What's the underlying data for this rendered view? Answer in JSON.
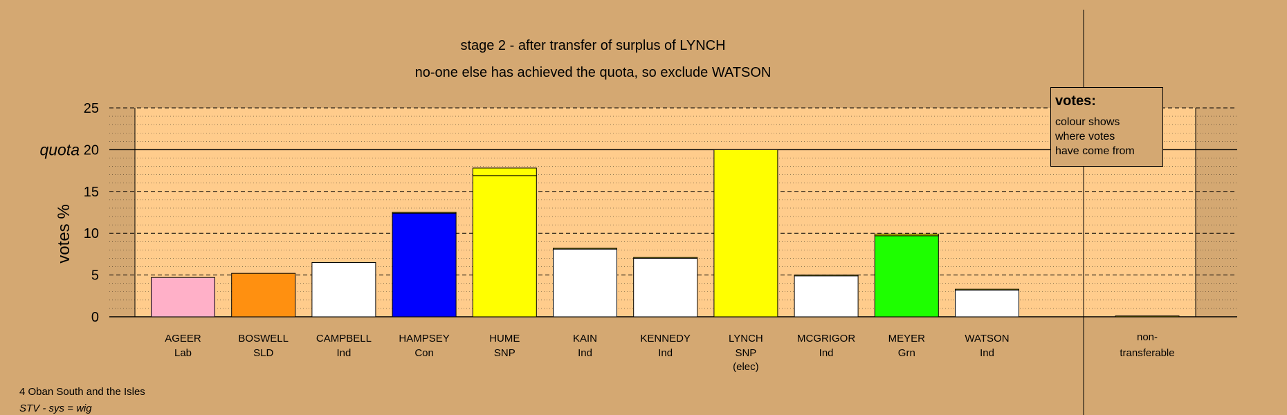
{
  "chart_data": {
    "type": "bar",
    "title": "stage 2 - after transfer of surplus of LYNCH",
    "subtitle": "no-one else has achieved the quota, so exclude WATSON",
    "ylabel": "votes %",
    "ylim": [
      0,
      25
    ],
    "yticks": [
      0,
      5,
      10,
      15,
      20,
      25
    ],
    "quota_label": "quota",
    "quota": 20,
    "categories": [
      {
        "name": "AGEER",
        "party": "Lab",
        "extra": ""
      },
      {
        "name": "BOSWELL",
        "party": "SLD",
        "extra": ""
      },
      {
        "name": "CAMPBELL",
        "party": "Ind",
        "extra": ""
      },
      {
        "name": "HAMPSEY",
        "party": "Con",
        "extra": ""
      },
      {
        "name": "HUME",
        "party": "SNP",
        "extra": ""
      },
      {
        "name": "KAIN",
        "party": "Ind",
        "extra": ""
      },
      {
        "name": "KENNEDY",
        "party": "Ind",
        "extra": ""
      },
      {
        "name": "LYNCH",
        "party": "SNP",
        "extra": "(elec)"
      },
      {
        "name": "MCGRIGOR",
        "party": "Ind",
        "extra": ""
      },
      {
        "name": "MEYER",
        "party": "Grn",
        "extra": ""
      },
      {
        "name": "WATSON",
        "party": "Ind",
        "extra": ""
      }
    ],
    "bars": [
      {
        "segments": [
          {
            "value": 4.7,
            "color": "#FFB0C8"
          }
        ]
      },
      {
        "segments": [
          {
            "value": 5.2,
            "color": "#FF9010"
          }
        ]
      },
      {
        "segments": [
          {
            "value": 6.5,
            "color": "#FFFFFF"
          }
        ]
      },
      {
        "segments": [
          {
            "value": 12.4,
            "color": "#0000FF"
          },
          {
            "value": 0.1,
            "color": "#FFFF00"
          }
        ]
      },
      {
        "segments": [
          {
            "value": 16.9,
            "color": "#FFFF00"
          },
          {
            "value": 0.9,
            "color": "#FFFF00"
          }
        ]
      },
      {
        "segments": [
          {
            "value": 8.1,
            "color": "#FFFFFF"
          },
          {
            "value": 0.1,
            "color": "#FFFF00"
          }
        ]
      },
      {
        "segments": [
          {
            "value": 7.0,
            "color": "#FFFFFF"
          },
          {
            "value": 0.1,
            "color": "#FFFF00"
          }
        ]
      },
      {
        "segments": [
          {
            "value": 20.0,
            "color": "#FFFF00"
          }
        ]
      },
      {
        "segments": [
          {
            "value": 4.9,
            "color": "#FFFFFF"
          },
          {
            "value": 0.1,
            "color": "#FFFF00"
          }
        ]
      },
      {
        "segments": [
          {
            "value": 9.7,
            "color": "#1EFF00"
          },
          {
            "value": 0.2,
            "color": "#FFFF00"
          }
        ]
      },
      {
        "segments": [
          {
            "value": 3.2,
            "color": "#FFFFFF"
          },
          {
            "value": 0.1,
            "color": "#FFFF00"
          }
        ]
      }
    ],
    "nontransferable": {
      "label_line1": "non-",
      "label_line2": "transferable",
      "value": 0.1,
      "color": "#FFFF00"
    },
    "colors": {
      "background": "#D4A872",
      "plot_area": "#FFCC8C",
      "grid": "#000000"
    }
  },
  "legend": {
    "title": "votes:",
    "lines": [
      "colour shows",
      "where votes",
      "have come from"
    ]
  },
  "footer": {
    "line1": "4 Oban South and the Isles",
    "line2": "STV - sys = wig"
  }
}
